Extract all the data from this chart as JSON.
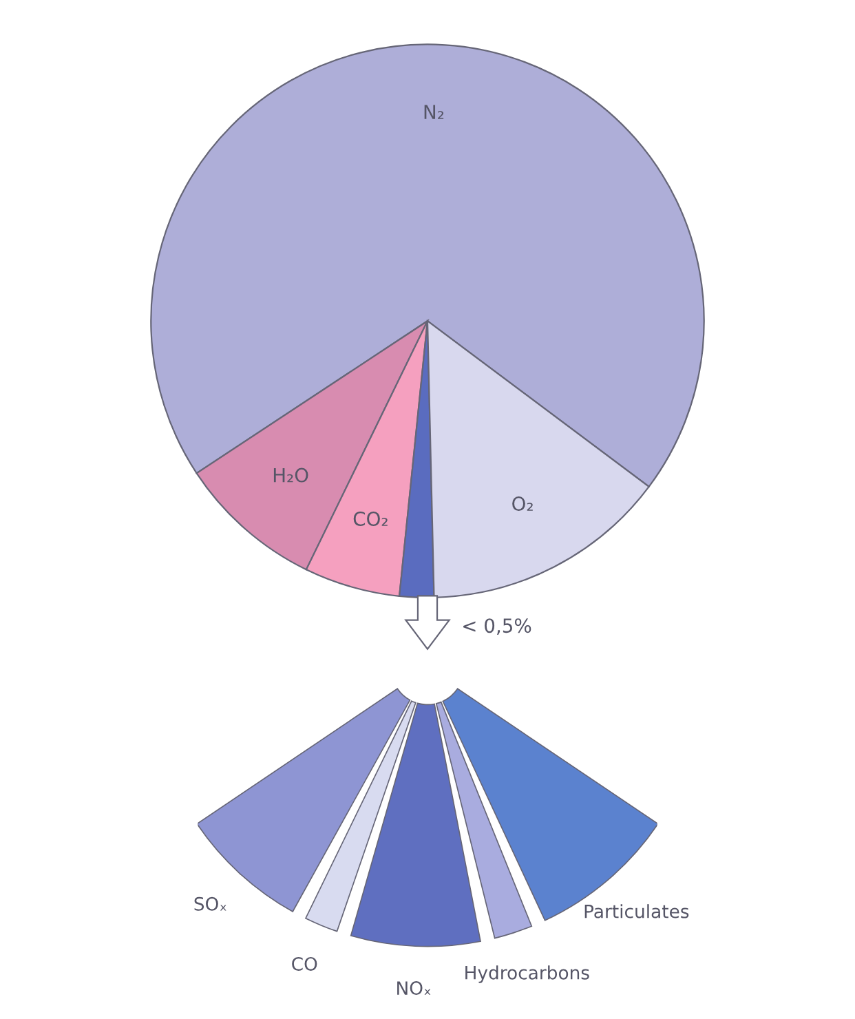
{
  "chart_data": [
    {
      "type": "pie",
      "categories": [
        "N₂",
        "H₂O",
        "CO₂",
        null,
        "O₂"
      ],
      "values": [
        69.5,
        8.5,
        5.6,
        2.0,
        14.4
      ],
      "colors": [
        "#aeaed8",
        "#d88cb0",
        "#f5a0bf",
        "#5a6cbf",
        "#d8d8ee"
      ]
    },
    {
      "type": "donut",
      "annotations": [
        "< 0,5%"
      ],
      "categories": [
        "SOₓ",
        "CO",
        "NOₓ",
        "Hydrocarbons",
        "Particulates"
      ],
      "values": [
        27,
        7,
        27,
        8,
        31
      ],
      "colors": [
        "#8e95d3",
        "#d8dbf0",
        "#5f6fc0",
        "#a9acdf",
        "#5b82cf"
      ]
    }
  ]
}
